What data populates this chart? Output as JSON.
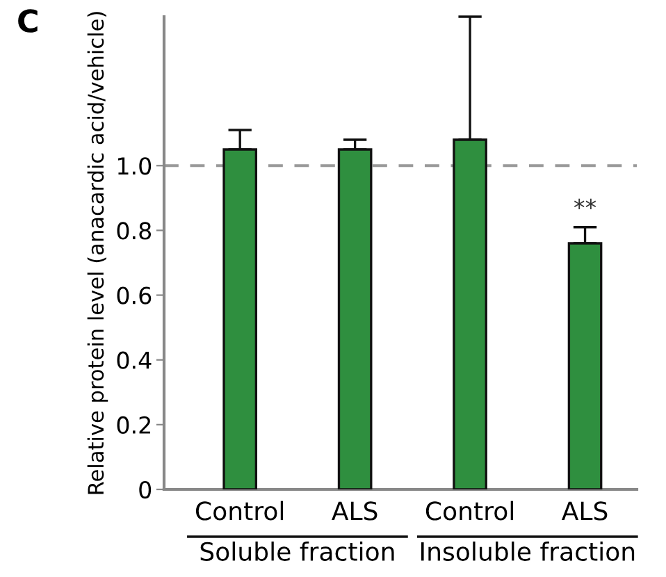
{
  "chart_data": {
    "type": "bar",
    "ylabel": "Relative protein level (anacardic acid/vehicle)",
    "categories": [
      "Control",
      "ALS",
      "Control",
      "ALS"
    ],
    "values": [
      1.05,
      1.05,
      1.08,
      0.76
    ],
    "errors": [
      [
        1.05,
        1.11
      ],
      [
        1.05,
        1.08
      ],
      [
        1.08,
        1.46
      ],
      [
        0.76,
        0.81
      ]
    ],
    "color": "#2f8f3f",
    "ylim": [
      0,
      1.46
    ],
    "yticks": [
      0,
      0.2,
      0.4,
      0.6,
      0.8,
      {
        "value": 1,
        "label": "1.0"
      }
    ],
    "ref_lines": [
      {
        "axis": "y",
        "value": 1.0,
        "color": "#999999",
        "line_style": "dashed"
      }
    ],
    "annotations": [
      "C",
      "**",
      "Soluble fraction",
      "Insoluble fraction"
    ],
    "grid": false
  }
}
